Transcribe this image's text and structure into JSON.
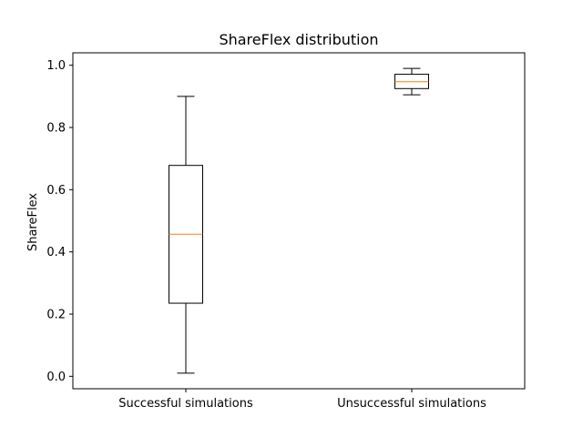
{
  "chart_data": {
    "type": "box",
    "title": "ShareFlex distribution",
    "xlabel": "",
    "ylabel": "ShareFlex",
    "ylim": [
      -0.04,
      1.04
    ],
    "yticks": [
      0.0,
      0.2,
      0.4,
      0.6,
      0.8,
      1.0
    ],
    "ytick_labels": [
      "0.0",
      "0.2",
      "0.4",
      "0.6",
      "0.8",
      "1.0"
    ],
    "categories": [
      "Successful simulations",
      "Unsuccessful simulations"
    ],
    "boxes": [
      {
        "category": "Successful simulations",
        "whisker_low": 0.01,
        "q1": 0.235,
        "median": 0.457,
        "q3": 0.678,
        "whisker_high": 0.9
      },
      {
        "category": "Unsuccessful simulations",
        "whisker_low": 0.905,
        "q1": 0.925,
        "median": 0.947,
        "q3": 0.971,
        "whisker_high": 0.99
      }
    ],
    "grid": false,
    "colors": {
      "box": "#000000",
      "median": "#ff7f0e",
      "background": "#ffffff"
    }
  }
}
